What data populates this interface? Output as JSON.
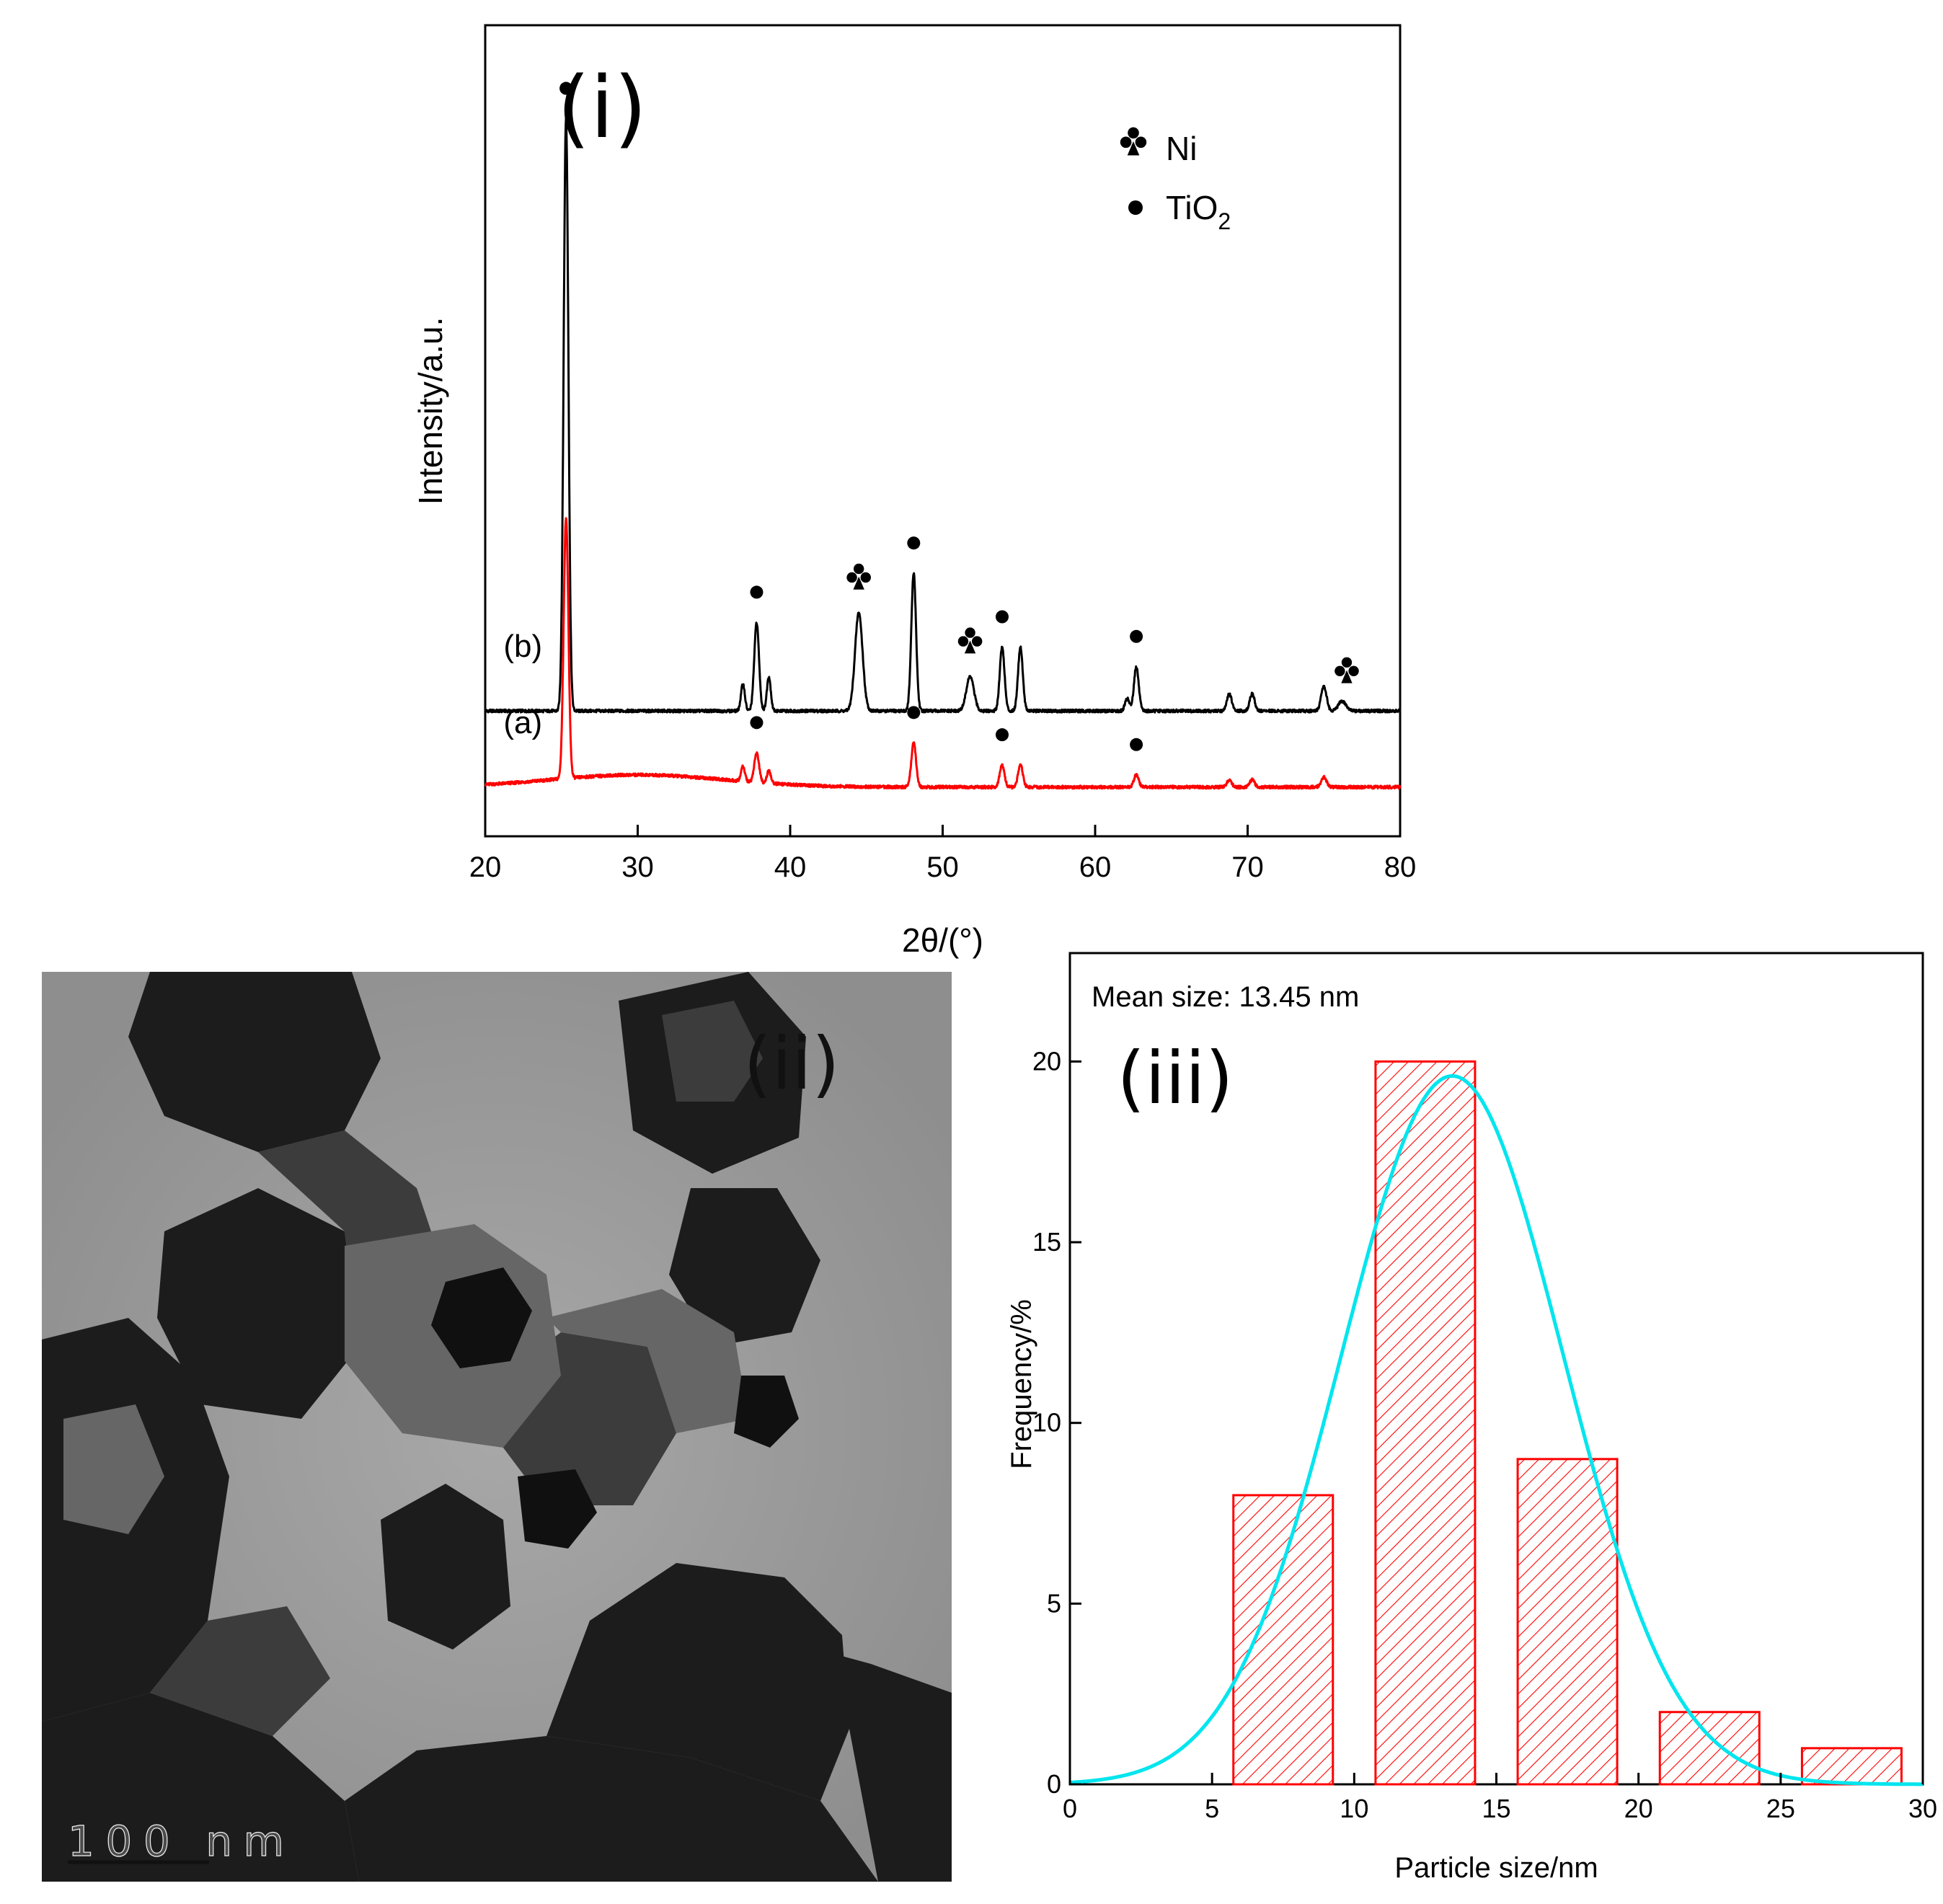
{
  "chart_data": [
    {
      "type": "line",
      "panel_label": "(i)",
      "xlabel": "2θ/(°)",
      "ylabel": "Intensity/a.u.",
      "xlim": [
        20,
        80
      ],
      "xticks": [
        20,
        30,
        40,
        50,
        60,
        70,
        80
      ],
      "y_ticks_shown": false,
      "legend": {
        "placement": "top-right",
        "entries": [
          {
            "marker": "club",
            "label": "Ni"
          },
          {
            "marker": "dot",
            "label": "TiO",
            "subscript": "2"
          }
        ]
      },
      "series": [
        {
          "name": "(b)",
          "color": "#000000",
          "baseline": 0.31,
          "hump": 0,
          "peaks": [
            {
              "x": 25.3,
              "h": 2.41,
              "w": 0.22
            },
            {
              "x": 36.9,
              "h": 0.11,
              "w": 0.18
            },
            {
              "x": 37.8,
              "h": 0.36,
              "w": 0.22
            },
            {
              "x": 38.6,
              "h": 0.14,
              "w": 0.18
            },
            {
              "x": 44.5,
              "h": 0.4,
              "w": 0.35
            },
            {
              "x": 48.1,
              "h": 0.56,
              "w": 0.22
            },
            {
              "x": 51.8,
              "h": 0.14,
              "w": 0.35
            },
            {
              "x": 53.9,
              "h": 0.26,
              "w": 0.22
            },
            {
              "x": 55.1,
              "h": 0.26,
              "w": 0.22
            },
            {
              "x": 62.1,
              "h": 0.05,
              "w": 0.2
            },
            {
              "x": 62.7,
              "h": 0.18,
              "w": 0.22
            },
            {
              "x": 68.8,
              "h": 0.07,
              "w": 0.22
            },
            {
              "x": 70.3,
              "h": 0.07,
              "w": 0.22
            },
            {
              "x": 75.0,
              "h": 0.1,
              "w": 0.25
            },
            {
              "x": 76.2,
              "h": 0.04,
              "w": 0.35
            }
          ]
        },
        {
          "name": "(a)",
          "color": "#ff0000",
          "baseline": 0.0,
          "hump": 0.05,
          "peaks": [
            {
              "x": 25.3,
              "h": 1.06,
              "w": 0.22
            },
            {
              "x": 36.9,
              "h": 0.06,
              "w": 0.18
            },
            {
              "x": 37.8,
              "h": 0.12,
              "w": 0.22
            },
            {
              "x": 38.6,
              "h": 0.05,
              "w": 0.18
            },
            {
              "x": 48.1,
              "h": 0.18,
              "w": 0.22
            },
            {
              "x": 53.9,
              "h": 0.09,
              "w": 0.22
            },
            {
              "x": 55.1,
              "h": 0.09,
              "w": 0.22
            },
            {
              "x": 62.7,
              "h": 0.05,
              "w": 0.22
            },
            {
              "x": 68.8,
              "h": 0.03,
              "w": 0.22
            },
            {
              "x": 70.3,
              "h": 0.03,
              "w": 0.22
            },
            {
              "x": 75.0,
              "h": 0.04,
              "w": 0.25
            }
          ]
        }
      ],
      "peak_markers": [
        {
          "series": "(b)",
          "x": 25.3,
          "marker": "dot"
        },
        {
          "series": "(b)",
          "x": 37.8,
          "marker": "dot"
        },
        {
          "series": "(b)",
          "x": 44.5,
          "marker": "club"
        },
        {
          "series": "(b)",
          "x": 48.1,
          "marker": "dot"
        },
        {
          "series": "(b)",
          "x": 51.8,
          "marker": "club"
        },
        {
          "series": "(b)",
          "x": 53.9,
          "marker": "dot"
        },
        {
          "series": "(b)",
          "x": 62.7,
          "marker": "dot"
        },
        {
          "series": "(b)",
          "x": 76.5,
          "marker": "club"
        },
        {
          "series": "(a)",
          "x": 37.8,
          "marker": "dot"
        },
        {
          "series": "(a)",
          "x": 48.1,
          "marker": "dot"
        },
        {
          "series": "(a)",
          "x": 53.9,
          "marker": "dot"
        },
        {
          "series": "(a)",
          "x": 62.7,
          "marker": "dot"
        }
      ]
    },
    {
      "type": "bar",
      "panel_label": "(iii)",
      "xlabel": "Particle size/nm",
      "ylabel": "Frequency/%",
      "annotation": "Mean size: 13.45 nm",
      "xlim": [
        0,
        30
      ],
      "ylim": [
        0,
        23
      ],
      "xticks": [
        0,
        5,
        10,
        15,
        20,
        25,
        30
      ],
      "yticks": [
        0,
        5,
        10,
        15,
        20
      ],
      "bars": [
        {
          "x0": 5.75,
          "x1": 9.25,
          "value": 8
        },
        {
          "x0": 10.75,
          "x1": 14.25,
          "value": 20
        },
        {
          "x0": 15.75,
          "x1": 19.25,
          "value": 9
        },
        {
          "x0": 20.75,
          "x1": 24.25,
          "value": 2
        },
        {
          "x0": 25.75,
          "x1": 29.25,
          "value": 1
        }
      ],
      "bar_color": "#ff0000",
      "fit": {
        "type": "gaussian",
        "amplitude": 19.6,
        "center": 13.45,
        "sigma": 3.9,
        "color": "#00e5ee"
      }
    }
  ],
  "tem_image": {
    "panel_label": "(ii)",
    "scale_bar": "100 nm"
  }
}
